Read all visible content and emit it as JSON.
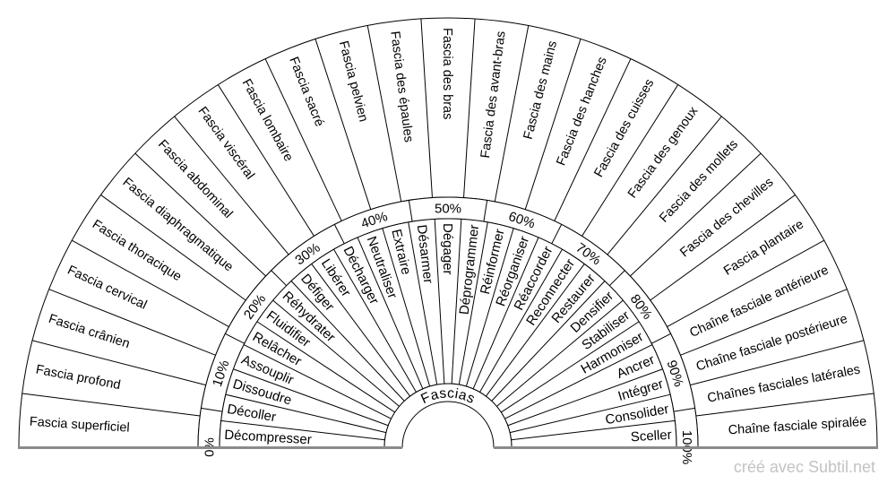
{
  "page": {
    "background": "#ffffff"
  },
  "chart": {
    "center_title": "Fascias",
    "colors": {
      "line": "#000000",
      "text": "#000000",
      "baseline_gray": "#8a8a8a",
      "watermark_gray": "#c3c3c3",
      "background": "#ffffff"
    },
    "rings": {
      "outer": [
        "Fascia superficiel",
        "Fascia profond",
        "Fascia crânien",
        "Fascia cervical",
        "Fascia thoracique",
        "Fascia diaphragmatique",
        "Fascia abdominal",
        "Fascia viscéral",
        "Fascia lombaire",
        "Fascia sacré",
        "Fascia pelvien",
        "Fascia des épaules",
        "Fascia des bras",
        "Fascia des avant-bras",
        "Fascia des mains",
        "Fascia des hanches",
        "Fascia des cuisses",
        "Fascia des genoux",
        "Fascia des mollets",
        "Fascia des chevilles",
        "Fascia plantaire",
        "Chaîne fasciale antérieure",
        "Chaîne fasciale postérieure",
        "Chaînes fasciales latérales",
        "Chaîne fasciale spiralée"
      ],
      "percent": [
        "0%",
        "10%",
        "20%",
        "30%",
        "40%",
        "50%",
        "60%",
        "70%",
        "80%",
        "90%",
        "100%"
      ],
      "inner": [
        "Décompresser",
        "Décoller",
        "Dissoudre",
        "Assouplir",
        "Relâcher",
        "Fluidifier",
        "Réhydrater",
        "Défiger",
        "Libérer",
        "Décharger",
        "Neutraliser",
        "Extraire",
        "Désarmer",
        "Dégager",
        "Déprogrammer",
        "Réinformer",
        "Réorganiser",
        "Réaccorder",
        "Reconnecter",
        "Restaurer",
        "Densifier",
        "Stabiliser",
        "Harmoniser",
        "Ancrer",
        "Intégrer",
        "Consolider",
        "Sceller"
      ]
    }
  },
  "watermark": {
    "text": "créé avec Subtil.net"
  }
}
